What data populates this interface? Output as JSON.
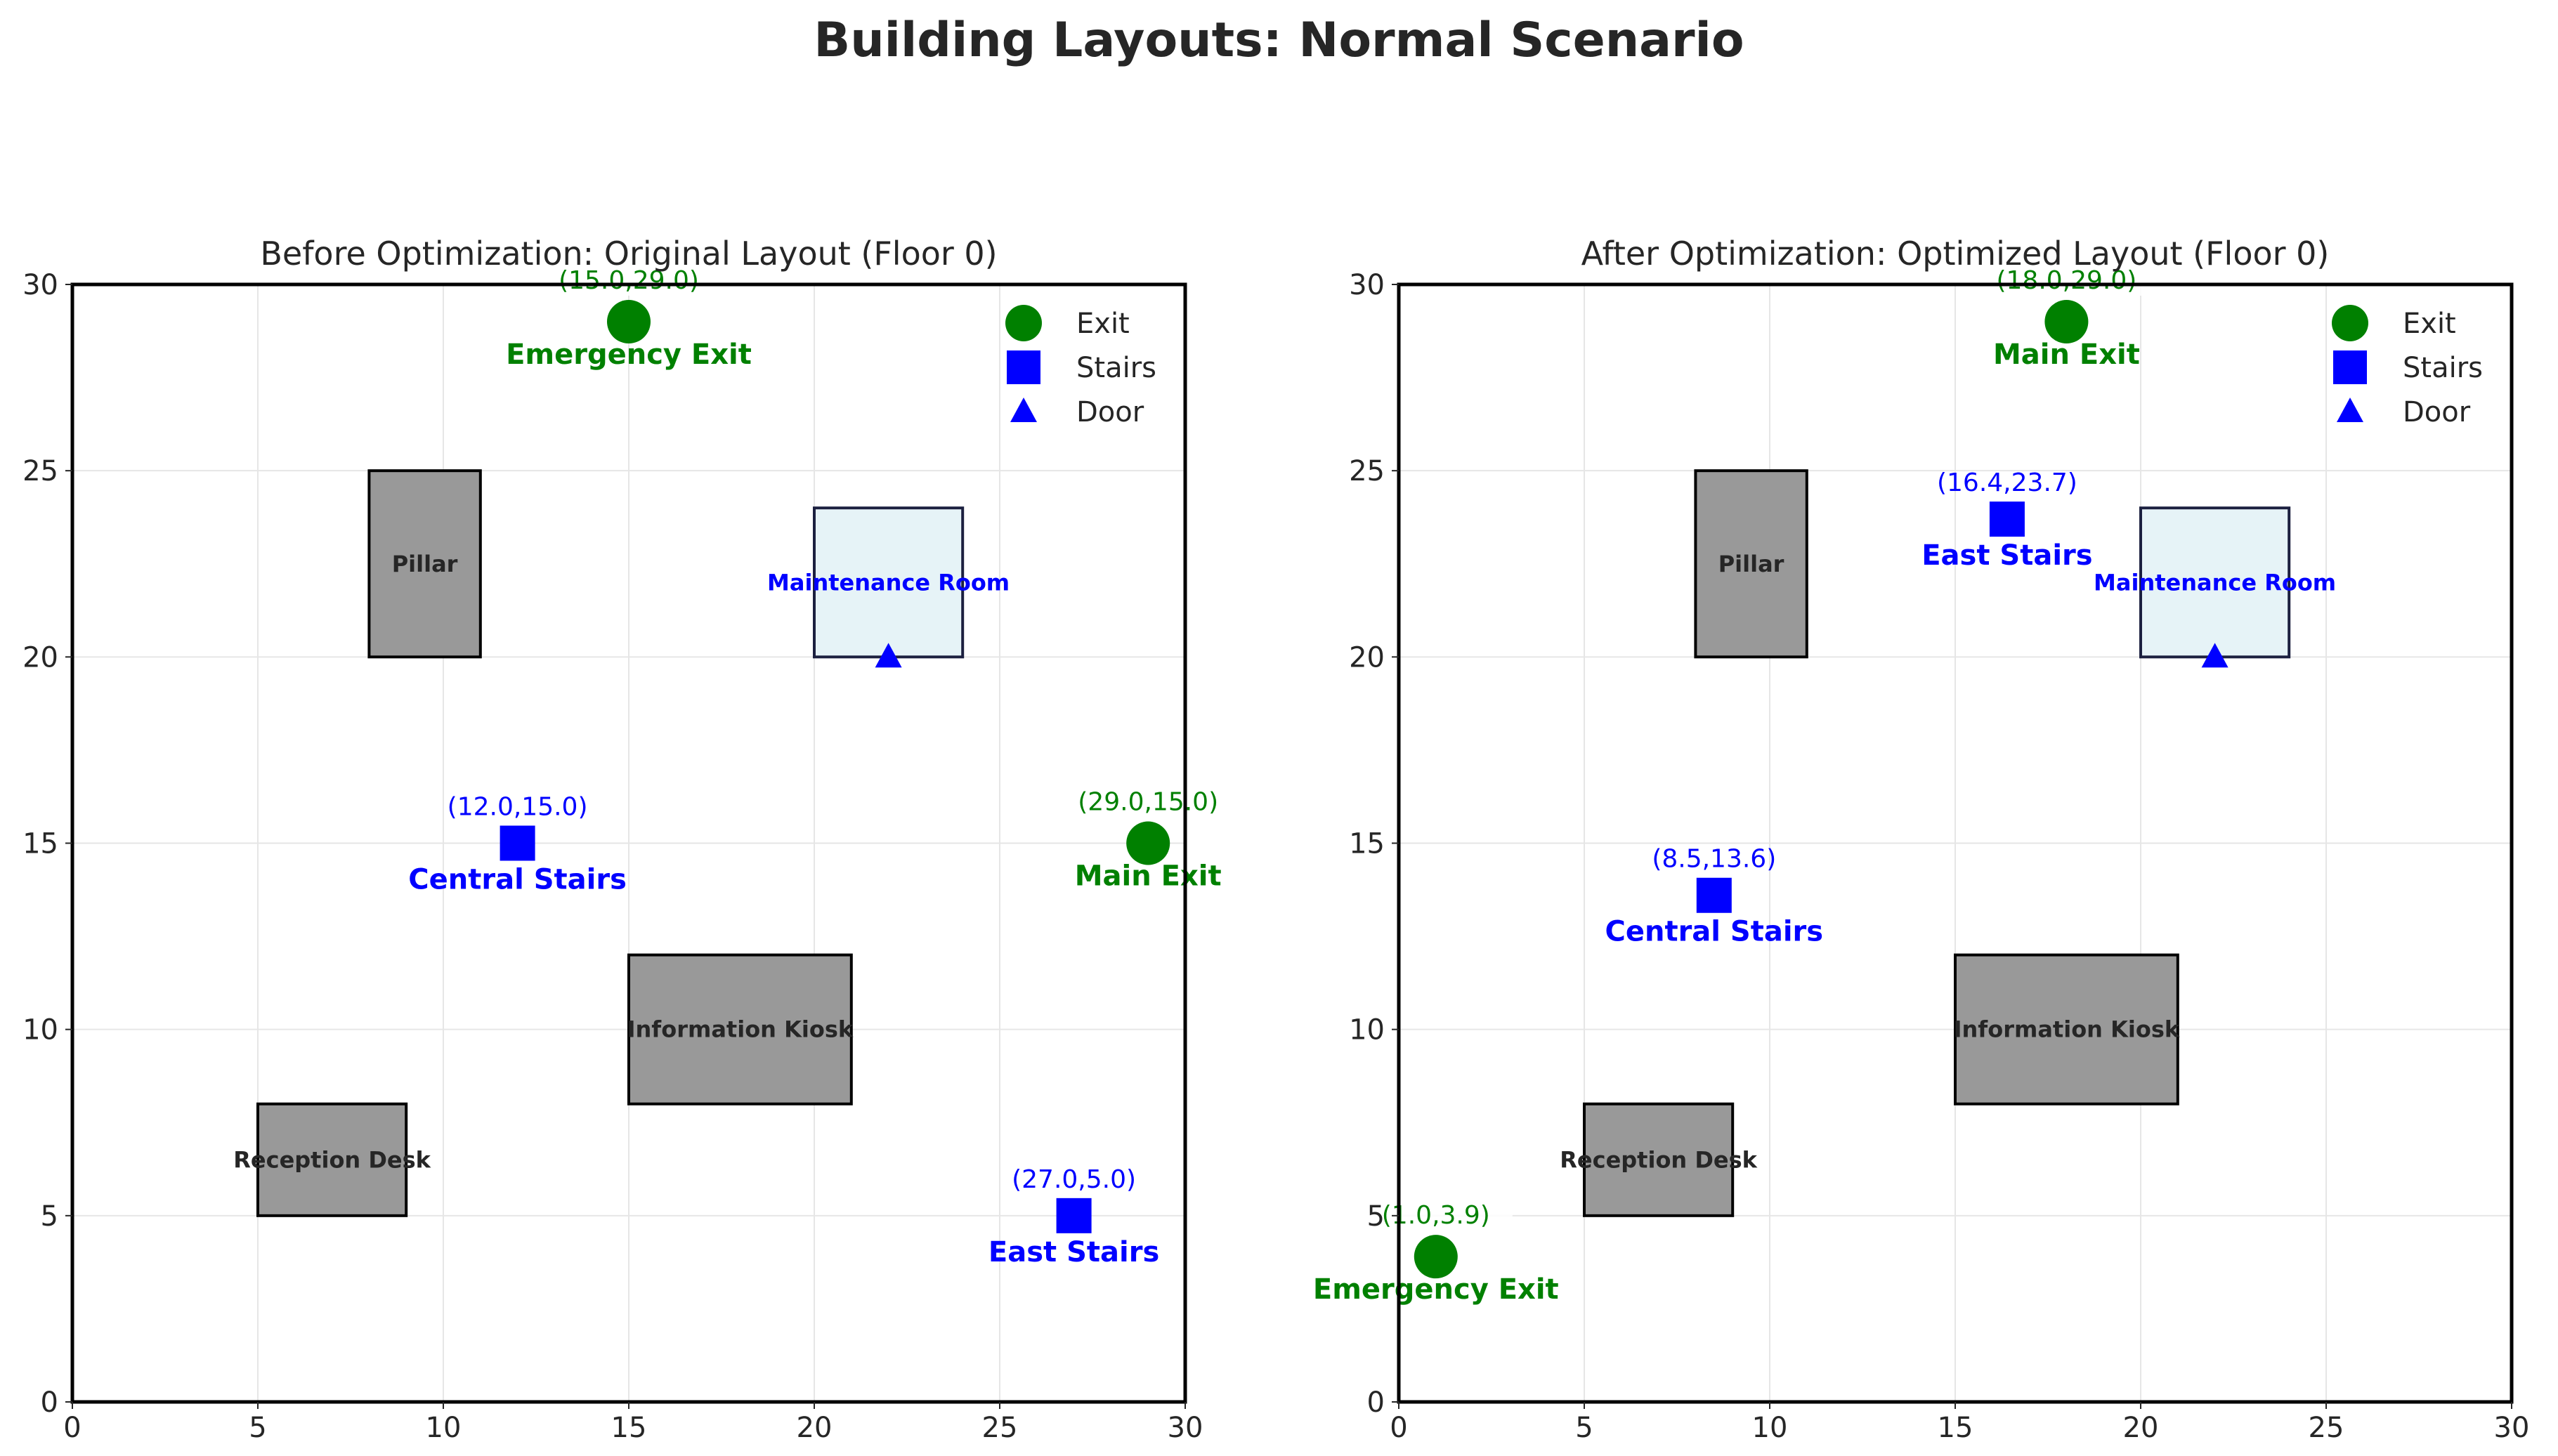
{
  "title": "Building Layouts: Normal Scenario",
  "colors": {
    "exit": "#008000",
    "stairs": "#0000ff",
    "door": "#0000ff",
    "obstacle": "#999999",
    "room_fill": "#e6f3f7",
    "room_edge": "#1c2040"
  },
  "legend": [
    "Exit",
    "Stairs",
    "Door"
  ],
  "chart_data": [
    {
      "type": "scatter",
      "title": "Before Optimization: Original Layout (Floor 0)",
      "xlim": [
        0,
        30
      ],
      "ylim": [
        0,
        30
      ],
      "xticks": [
        0,
        5,
        10,
        15,
        20,
        25,
        30
      ],
      "yticks": [
        0,
        5,
        10,
        15,
        20,
        25,
        30
      ],
      "grid": true,
      "legend_position": "top-right",
      "obstacles": [
        {
          "label": "Pillar",
          "x": 8,
          "y": 20,
          "w": 3,
          "h": 5
        },
        {
          "label": "Information Kiosk",
          "x": 15,
          "y": 8,
          "w": 6,
          "h": 4
        },
        {
          "label": "Reception Desk",
          "x": 5,
          "y": 5,
          "w": 4,
          "h": 3
        }
      ],
      "rooms": [
        {
          "label": "Maintenance Room",
          "x": 20,
          "y": 20,
          "w": 4,
          "h": 4
        }
      ],
      "exits": [
        {
          "label": "Emergency Exit",
          "coord": "(15.0,29.0)",
          "x": 15.0,
          "y": 29.0
        },
        {
          "label": "Main Exit",
          "coord": "(29.0,15.0)",
          "x": 29.0,
          "y": 15.0
        }
      ],
      "stairs": [
        {
          "label": "Central Stairs",
          "coord": "(12.0,15.0)",
          "x": 12.0,
          "y": 15.0
        },
        {
          "label": "East Stairs",
          "coord": "(27.0,5.0)",
          "x": 27.0,
          "y": 5.0
        }
      ],
      "doors": [
        {
          "x": 22,
          "y": 20
        }
      ]
    },
    {
      "type": "scatter",
      "title": "After Optimization: Optimized Layout (Floor 0)",
      "xlim": [
        0,
        30
      ],
      "ylim": [
        0,
        30
      ],
      "xticks": [
        0,
        5,
        10,
        15,
        20,
        25,
        30
      ],
      "yticks": [
        0,
        5,
        10,
        15,
        20,
        25,
        30
      ],
      "grid": true,
      "legend_position": "top-right",
      "obstacles": [
        {
          "label": "Pillar",
          "x": 8,
          "y": 20,
          "w": 3,
          "h": 5
        },
        {
          "label": "Information Kiosk",
          "x": 15,
          "y": 8,
          "w": 6,
          "h": 4
        },
        {
          "label": "Reception Desk",
          "x": 5,
          "y": 5,
          "w": 4,
          "h": 3
        }
      ],
      "rooms": [
        {
          "label": "Maintenance Room",
          "x": 20,
          "y": 20,
          "w": 4,
          "h": 4
        }
      ],
      "exits": [
        {
          "label": "Main Exit",
          "coord": "(18.0,29.0)",
          "x": 18.0,
          "y": 29.0
        },
        {
          "label": "Emergency Exit",
          "coord": "(1.0,3.9)",
          "x": 1.0,
          "y": 3.9
        }
      ],
      "stairs": [
        {
          "label": "East Stairs",
          "coord": "(16.4,23.7)",
          "x": 16.4,
          "y": 23.7
        },
        {
          "label": "Central Stairs",
          "coord": "(8.5,13.6)",
          "x": 8.5,
          "y": 13.6
        }
      ],
      "doors": [
        {
          "x": 22,
          "y": 20
        }
      ]
    }
  ]
}
